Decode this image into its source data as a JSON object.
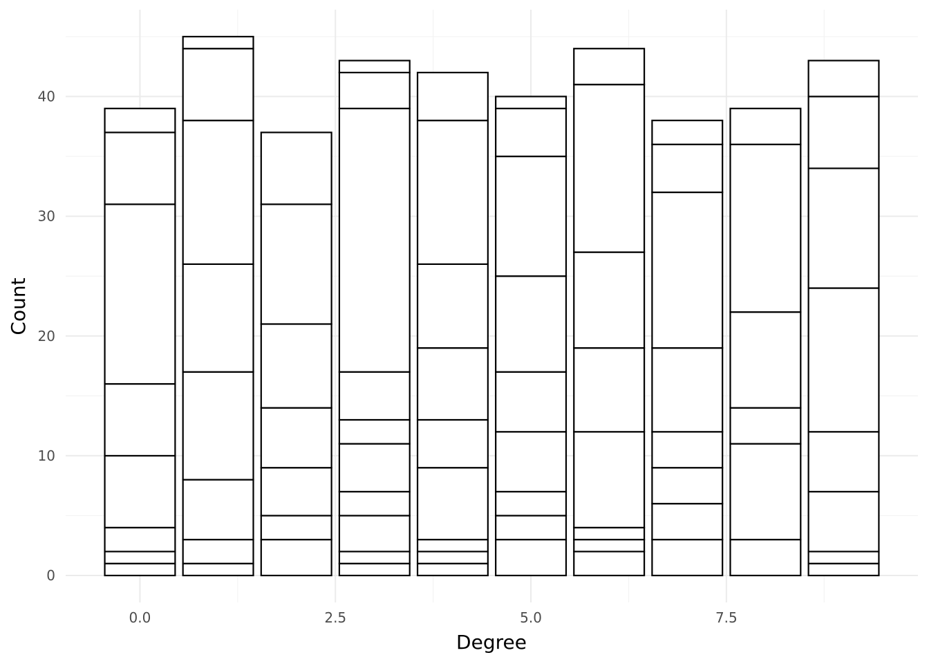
{
  "chart_data": {
    "type": "bar",
    "stacked": true,
    "xlabel": "Degree",
    "ylabel": "Count",
    "x": [
      0,
      1,
      2,
      3,
      4,
      5,
      6,
      7,
      8,
      9
    ],
    "totals": [
      39,
      45,
      37,
      43,
      42,
      40,
      44,
      38,
      39,
      43
    ],
    "segment_boundaries": [
      [
        0,
        1,
        2,
        4,
        10,
        16,
        31,
        37,
        39
      ],
      [
        0,
        1,
        3,
        8,
        17,
        26,
        38,
        44,
        45
      ],
      [
        0,
        3,
        5,
        9,
        14,
        21,
        31,
        37
      ],
      [
        0,
        1,
        2,
        5,
        7,
        11,
        13,
        17,
        39,
        42,
        43
      ],
      [
        0,
        1,
        2,
        3,
        9,
        13,
        19,
        26,
        38,
        42
      ],
      [
        0,
        3,
        5,
        7,
        12,
        17,
        25,
        35,
        39,
        40
      ],
      [
        0,
        2,
        3,
        4,
        12,
        19,
        27,
        41,
        44
      ],
      [
        0,
        3,
        6,
        9,
        12,
        19,
        32,
        36,
        38
      ],
      [
        0,
        3,
        11,
        14,
        22,
        36,
        39
      ],
      [
        0,
        1,
        2,
        7,
        12,
        24,
        34,
        40,
        43
      ]
    ],
    "xlim": [
      -0.95,
      9.95
    ],
    "ylim": [
      -2.25,
      47.25
    ],
    "x_ticks": [
      0,
      2.5,
      5,
      7.5
    ],
    "x_tick_labels": [
      "0.0",
      "2.5",
      "5.0",
      "7.5"
    ],
    "x_minor_ticks": [
      1.25,
      3.75,
      6.25,
      8.75
    ],
    "y_ticks": [
      0,
      10,
      20,
      30,
      40
    ],
    "y_tick_labels": [
      "0",
      "10",
      "20",
      "30",
      "40"
    ],
    "y_minor_ticks": [
      5,
      15,
      25,
      35,
      45
    ],
    "bar_width": 0.9,
    "grid": true,
    "fill_color": "#ffffff",
    "outline_color": "#000000"
  }
}
